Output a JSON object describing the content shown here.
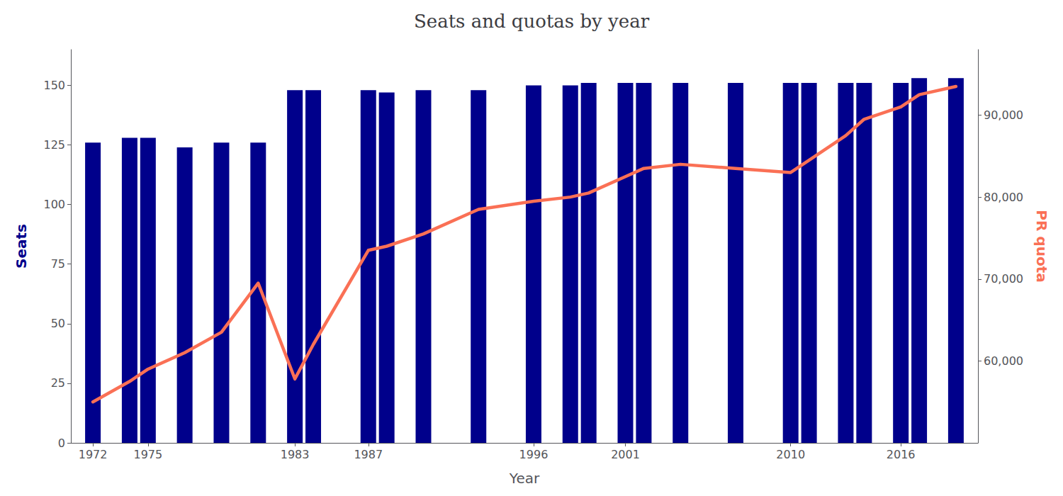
{
  "chart_data": {
    "type": "bar",
    "title": "Seats and quotas by year",
    "xlabel": "Year",
    "ylabel": "Seats",
    "y2label": "PR quota",
    "x": [
      1972,
      1974,
      1975,
      1977,
      1979,
      1981,
      1983,
      1984,
      1987,
      1988,
      1990,
      1993,
      1996,
      1998,
      1999,
      2001,
      2002,
      2004,
      2007,
      2010,
      2011,
      2013,
      2014,
      2016,
      2017,
      2019
    ],
    "series": [
      {
        "name": "Seats",
        "type": "bar",
        "color": "#00008B",
        "values": [
          126,
          128,
          128,
          124,
          126,
          126,
          148,
          148,
          148,
          147,
          148,
          148,
          150,
          150,
          151,
          151,
          151,
          151,
          151,
          151,
          151,
          151,
          151,
          151,
          153,
          153
        ]
      },
      {
        "name": "PR quota",
        "type": "line",
        "color": "#FA7055",
        "axis": "y2",
        "values": [
          55000,
          57500,
          59000,
          61000,
          63500,
          69500,
          57800,
          62000,
          73500,
          74000,
          75500,
          78500,
          79500,
          80000,
          80500,
          82500,
          83500,
          84000,
          83500,
          83000,
          84500,
          87500,
          89500,
          91000,
          92500,
          93500
        ]
      }
    ],
    "xlim": [
      1970.8,
      2020.2
    ],
    "xticks": [
      1972,
      1975,
      1983,
      1987,
      1996,
      2001,
      2010,
      2016
    ],
    "ylim": [
      0,
      165
    ],
    "yticks": [
      0,
      25,
      50,
      75,
      100,
      125,
      150
    ],
    "y2lim": [
      50000,
      98000
    ],
    "y2ticks": [
      {
        "value": 60000,
        "label": "60,000"
      },
      {
        "value": 70000,
        "label": "70,000"
      },
      {
        "value": 80000,
        "label": "80,000"
      },
      {
        "value": 90000,
        "label": "90,000"
      }
    ],
    "grid": false
  }
}
